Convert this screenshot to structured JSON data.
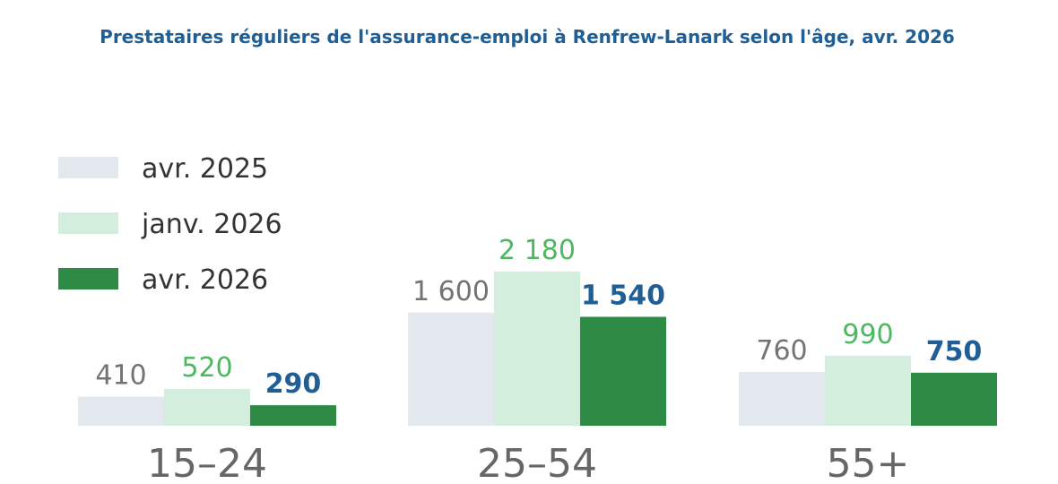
{
  "chart_data": {
    "type": "bar",
    "title": "Prestataires réguliers de l'assurance-emploi à Renfrew-Lanark selon l'âge, avr. 2026",
    "categories": [
      "15–24",
      "25–54",
      "55+"
    ],
    "series": [
      {
        "name": "avr. 2025",
        "values": [
          410,
          1600,
          760
        ],
        "value_labels": [
          "410",
          "1 600",
          "760"
        ],
        "color": "#e3e7ee",
        "label_color": "#737373",
        "label_bold": false
      },
      {
        "name": "janv. 2026",
        "values": [
          520,
          2180,
          990
        ],
        "value_labels": [
          "520",
          "2 180",
          "990"
        ],
        "color": "#d4eedd",
        "label_color": "#4cb860",
        "label_bold": false
      },
      {
        "name": "avr. 2026",
        "values": [
          290,
          1540,
          750
        ],
        "value_labels": [
          "290",
          "1 540",
          "750"
        ],
        "color": "#2e8b45",
        "label_color": "#1f5f96",
        "label_bold": true
      }
    ],
    "ylim": [
      0,
      2180
    ],
    "grid": false,
    "legend_position": "top-left",
    "title_color": "#1f5f96"
  }
}
